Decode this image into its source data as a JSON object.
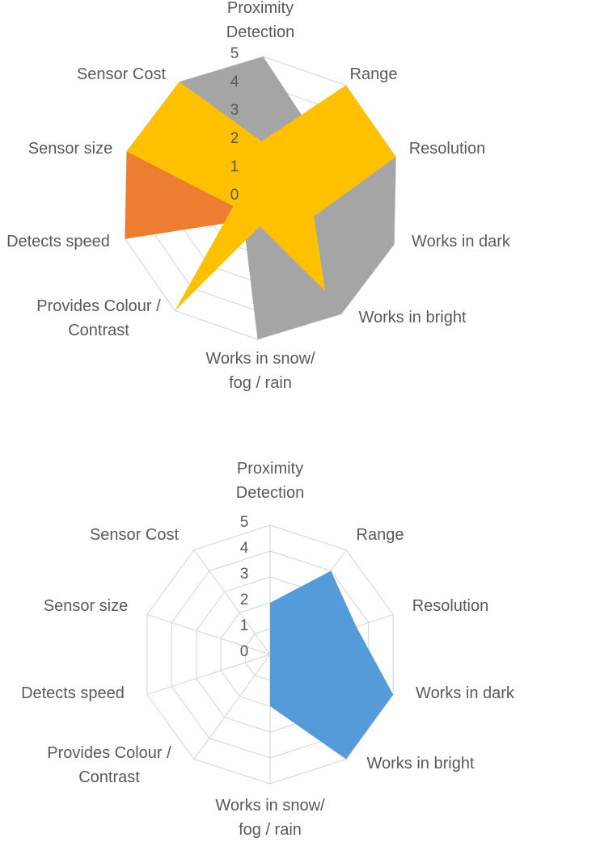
{
  "chart_data": [
    {
      "type": "radar",
      "categories": [
        "Proximity Detection",
        "Range",
        "Resolution",
        "Works in dark",
        "Works in bright",
        "Works in snow/ fog / rain",
        "Provides Colour / Contrast",
        "Detects speed",
        "Sensor size",
        "Sensor Cost"
      ],
      "category_lines": [
        [
          "Proximity",
          "Detection"
        ],
        [
          "Range"
        ],
        [
          "Resolution"
        ],
        [
          "Works in dark"
        ],
        [
          "Works in bright"
        ],
        [
          "Works in snow/",
          "fog / rain"
        ],
        [
          "Provides Colour /",
          "Contrast"
        ],
        [
          "Detects speed"
        ],
        [
          "Sensor size"
        ],
        [
          "Sensor Cost"
        ]
      ],
      "ticks": [
        "0",
        "1",
        "2",
        "3",
        "4",
        "5"
      ],
      "rlim": [
        0,
        5
      ],
      "grid": true,
      "series": [
        {
          "color": "#A5A5A5",
          "values": [
            5,
            3,
            5,
            5,
            5,
            5,
            1,
            1,
            5,
            5
          ]
        },
        {
          "color": "#ED7D31",
          "values": [
            2,
            4,
            1,
            1,
            1,
            1,
            1,
            5,
            5,
            1
          ]
        },
        {
          "color": "#FFC000",
          "values": [
            2,
            5,
            5,
            2,
            4,
            1,
            5,
            1,
            5,
            5
          ]
        }
      ]
    },
    {
      "type": "radar",
      "categories": [
        "Proximity Detection",
        "Range",
        "Resolution",
        "Works in dark",
        "Works in bright",
        "Works in snow/ fog / rain",
        "Provides Colour / Contrast",
        "Detects speed",
        "Sensor size",
        "Sensor Cost"
      ],
      "category_lines": [
        [
          "Proximity",
          "Detection"
        ],
        [
          "Range"
        ],
        [
          "Resolution"
        ],
        [
          "Works in dark"
        ],
        [
          "Works in bright"
        ],
        [
          "Works in snow/",
          "fog / rain"
        ],
        [
          "Provides Colour /",
          "Contrast"
        ],
        [
          "Detects speed"
        ],
        [
          "Sensor size"
        ],
        [
          "Sensor Cost"
        ]
      ],
      "ticks": [
        "0",
        "1",
        "2",
        "3",
        "4",
        "5"
      ],
      "rlim": [
        0,
        5
      ],
      "grid": true,
      "series": [
        {
          "color": "#559AD9",
          "values": [
            2,
            4,
            3.5,
            5,
            5,
            2,
            0,
            4,
            0,
            0
          ]
        }
      ]
    }
  ]
}
